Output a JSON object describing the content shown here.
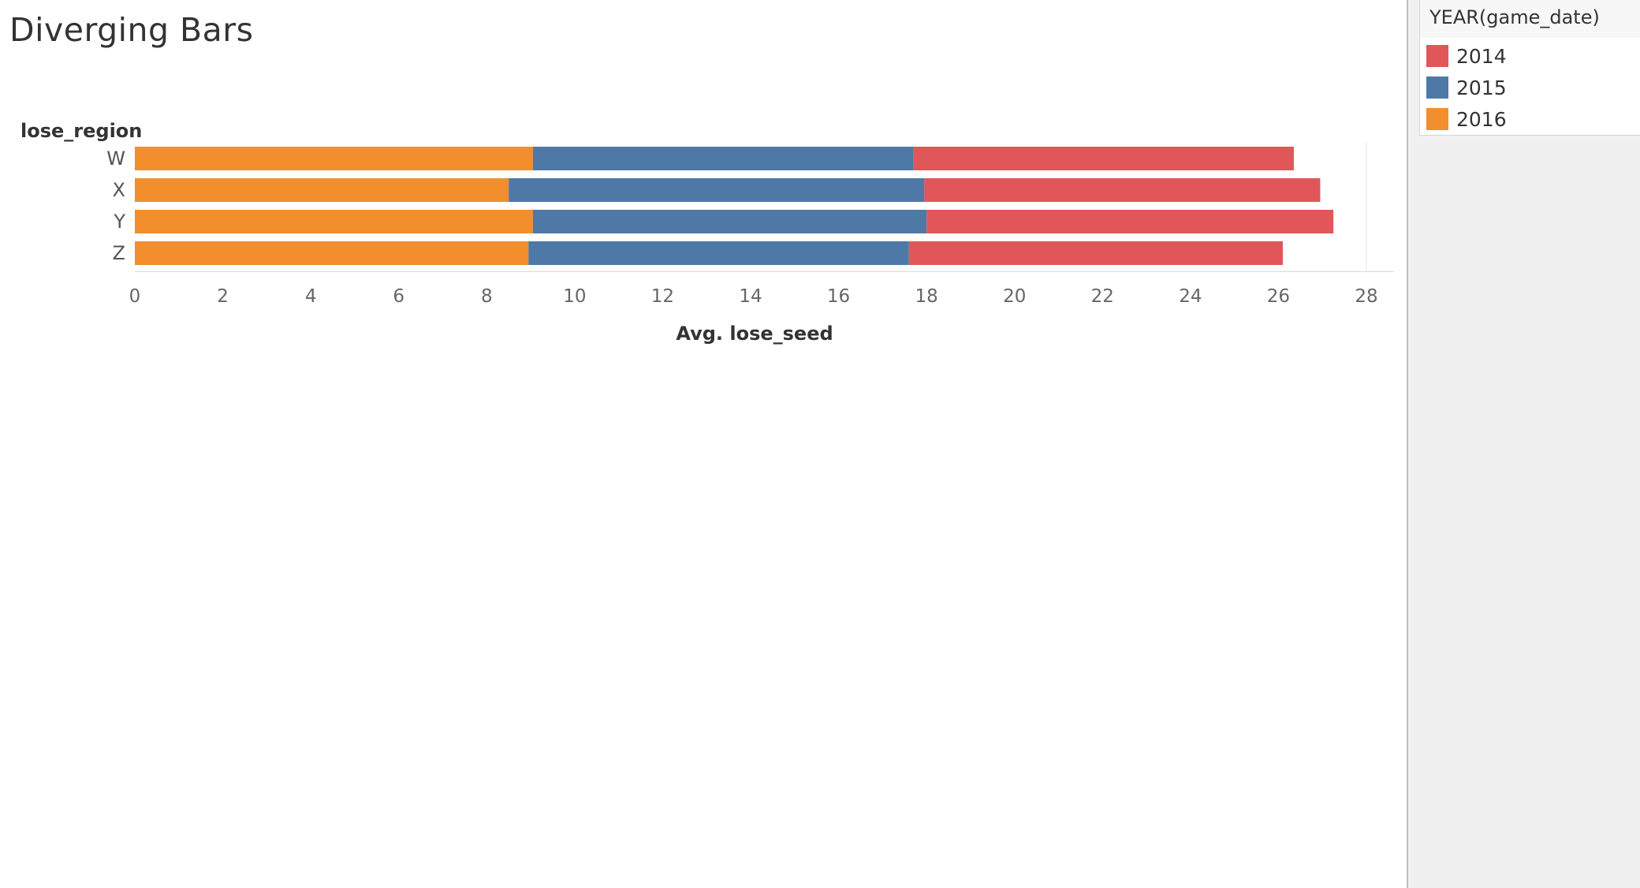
{
  "title": "Diverging Bars",
  "legend": {
    "title": "YEAR(game_date)",
    "items": [
      {
        "label": "2014",
        "color": "#e15759"
      },
      {
        "label": "2015",
        "color": "#4e79a7"
      },
      {
        "label": "2016",
        "color": "#f28e2b"
      }
    ]
  },
  "chart_data": {
    "type": "bar",
    "orientation": "horizontal",
    "stacked": true,
    "ylabel": "lose_region",
    "xlabel": "Avg. lose_seed",
    "categories": [
      "W",
      "X",
      "Y",
      "Z"
    ],
    "series": [
      {
        "name": "2016",
        "color": "#f28e2b",
        "values": [
          9.05,
          8.5,
          9.05,
          8.95
        ]
      },
      {
        "name": "2015",
        "color": "#4e79a7",
        "values": [
          8.65,
          9.45,
          8.95,
          8.65
        ]
      },
      {
        "name": "2014",
        "color": "#e15759",
        "values": [
          8.65,
          9.0,
          9.25,
          8.5
        ]
      }
    ],
    "xlim": [
      0,
      28
    ],
    "xticks": [
      "0",
      "2",
      "4",
      "6",
      "8",
      "10",
      "12",
      "14",
      "16",
      "18",
      "20",
      "22",
      "24",
      "26",
      "28"
    ],
    "grid": true
  }
}
